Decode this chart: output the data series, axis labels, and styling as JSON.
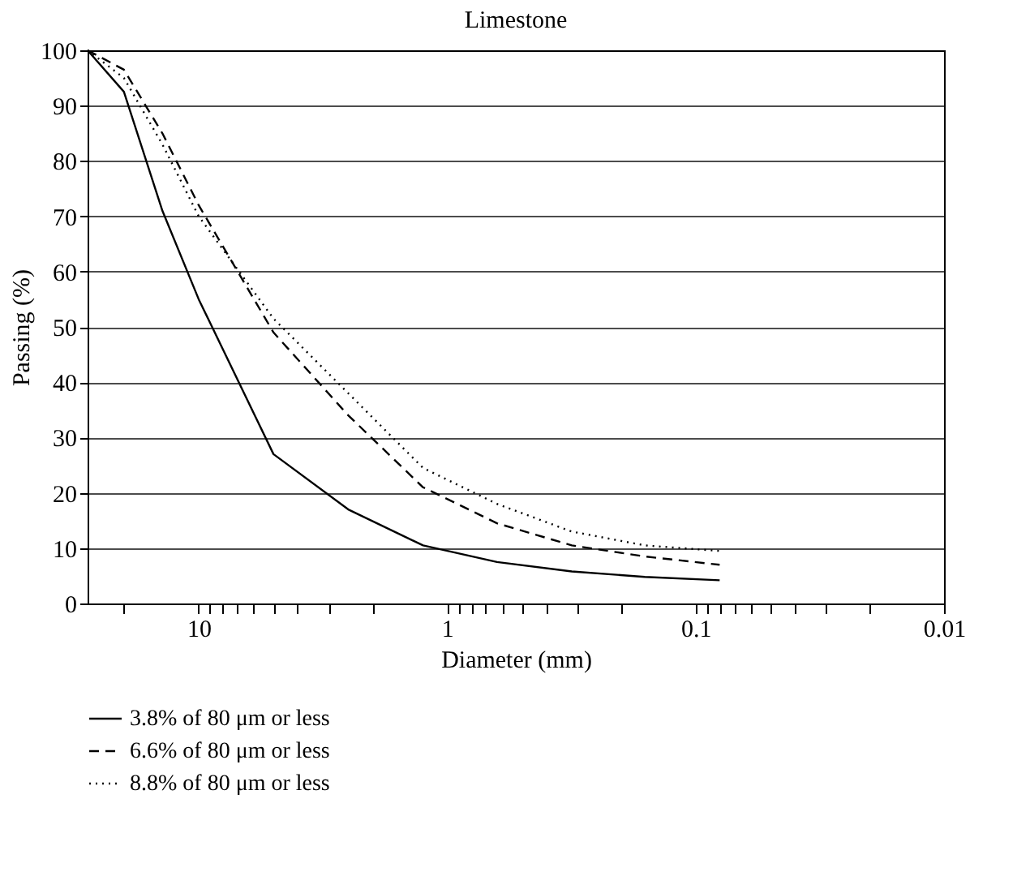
{
  "chart_data": {
    "type": "line",
    "title": "Limestone",
    "xlabel": "Diameter (mm)",
    "ylabel": "Passing (%)",
    "log": "x",
    "xlim": [
      28,
      0.01
    ],
    "ylim": [
      0,
      100
    ],
    "xticks": [
      {
        "value": 20,
        "label": null
      },
      10,
      {
        "value": 9,
        "label": null
      },
      {
        "value": 8,
        "label": null
      },
      {
        "value": 7,
        "label": null
      },
      {
        "value": 6,
        "label": null
      },
      {
        "value": 5,
        "label": null
      },
      {
        "value": 4,
        "label": null
      },
      {
        "value": 3,
        "label": null
      },
      {
        "value": 2,
        "label": null
      },
      1,
      {
        "value": 0.9,
        "label": null
      },
      {
        "value": 0.8,
        "label": null
      },
      {
        "value": 0.7,
        "label": null
      },
      {
        "value": 0.6,
        "label": null
      },
      {
        "value": 0.5,
        "label": null
      },
      {
        "value": 0.4,
        "label": null
      },
      {
        "value": 0.3,
        "label": null
      },
      {
        "value": 0.2,
        "label": null
      },
      0.1,
      {
        "value": 0.09,
        "label": null
      },
      {
        "value": 0.08,
        "label": null
      },
      {
        "value": 0.07,
        "label": null
      },
      {
        "value": 0.06,
        "label": null
      },
      {
        "value": 0.05,
        "label": null
      },
      {
        "value": 0.04,
        "label": null
      },
      {
        "value": 0.03,
        "label": null
      },
      {
        "value": 0.02,
        "label": null
      },
      0.01
    ],
    "yticks": [
      0,
      10,
      20,
      30,
      40,
      50,
      60,
      70,
      80,
      90,
      100
    ],
    "grid": "y",
    "legend": "bottom",
    "marker": "none",
    "x": [
      28,
      20,
      14,
      10,
      5,
      2.5,
      1.25,
      0.63,
      0.315,
      0.16,
      0.08
    ],
    "series": [
      {
        "name": "3.8% of 80 μm or less",
        "color": "#000000",
        "line_style": "solid",
        "values": [
          100,
          92.5,
          71,
          55,
          27,
          17,
          10.5,
          7.5,
          5.8,
          4.8,
          4.2
        ]
      },
      {
        "name": "6.6% of 80 μm or less",
        "color": "#000000",
        "line_style": "dashed",
        "values": [
          100,
          96.5,
          85,
          72,
          49,
          34,
          21,
          14.5,
          10.5,
          8.5,
          7
        ]
      },
      {
        "name": "8.8% of 80 μm or less",
        "color": "#000000",
        "line_style": "dotted",
        "values": [
          100,
          95,
          83,
          70,
          51.5,
          38,
          24.5,
          18,
          13,
          10.5,
          9.5
        ]
      }
    ]
  }
}
